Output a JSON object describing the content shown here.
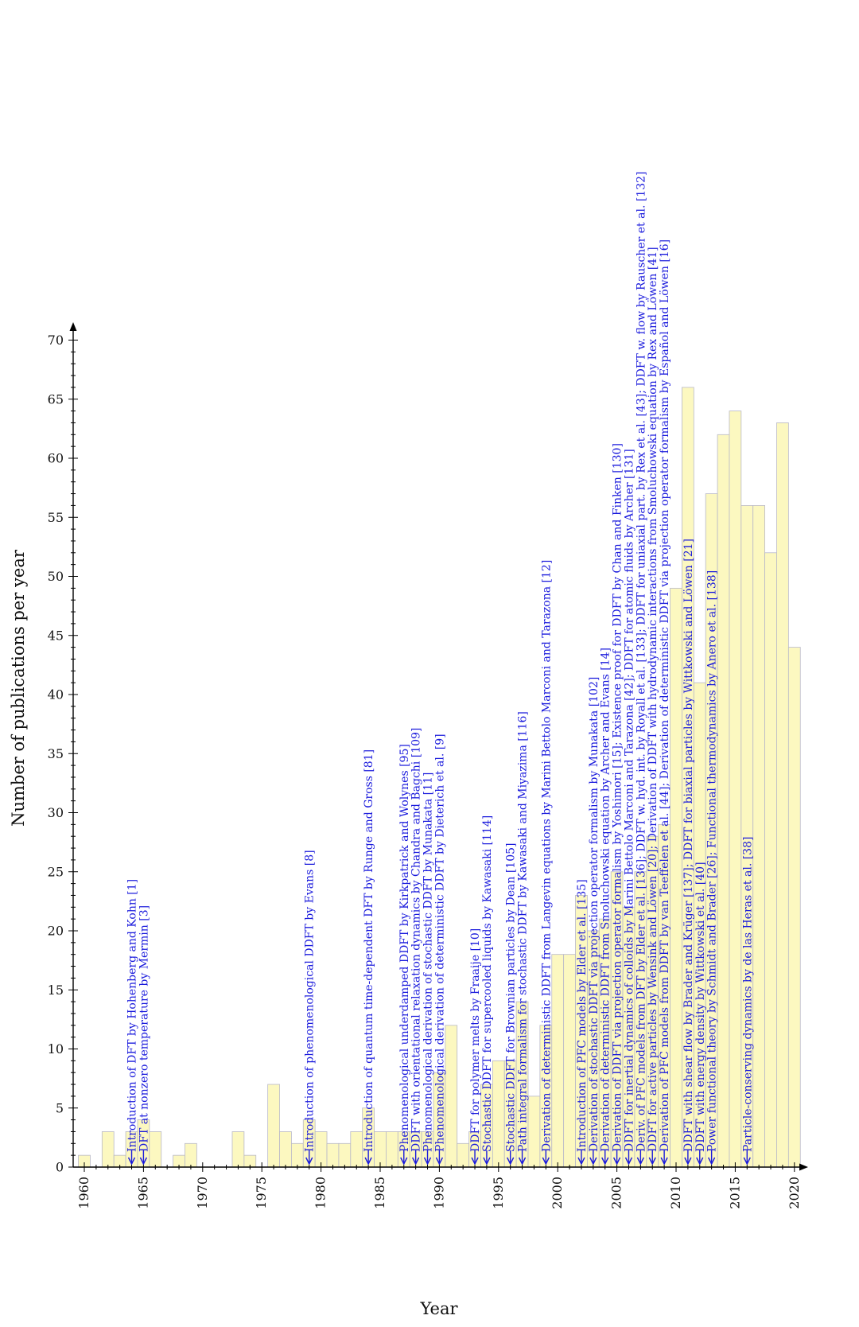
{
  "chart_data": {
    "type": "bar",
    "xlabel": "Year",
    "ylabel": "Number of publications per year",
    "xlim": [
      1959,
      2021
    ],
    "ylim": [
      0,
      70
    ],
    "x_ticks": [
      1960,
      1965,
      1970,
      1975,
      1980,
      1985,
      1990,
      1995,
      2000,
      2005,
      2010,
      2015,
      2020
    ],
    "y_ticks": [
      0,
      5,
      10,
      15,
      20,
      25,
      30,
      35,
      40,
      45,
      50,
      55,
      60,
      65,
      70
    ],
    "grid": false,
    "bar_color": "#fcf8c0",
    "bar_edge_color": "#b8b8c8",
    "annotation_color": "#1a1adc",
    "x": [
      1960,
      1961,
      1962,
      1963,
      1964,
      1965,
      1966,
      1967,
      1968,
      1969,
      1970,
      1971,
      1972,
      1973,
      1974,
      1975,
      1976,
      1977,
      1978,
      1979,
      1980,
      1981,
      1982,
      1983,
      1984,
      1985,
      1986,
      1987,
      1988,
      1989,
      1990,
      1991,
      1992,
      1993,
      1994,
      1995,
      1996,
      1997,
      1998,
      1999,
      2000,
      2001,
      2002,
      2003,
      2004,
      2005,
      2006,
      2007,
      2008,
      2009,
      2010,
      2011,
      2012,
      2013,
      2014,
      2015,
      2016,
      2017,
      2018,
      2019,
      2020
    ],
    "values": [
      1,
      0,
      3,
      1,
      3,
      4,
      3,
      0,
      1,
      2,
      0,
      0,
      0,
      3,
      1,
      0,
      7,
      3,
      2,
      4,
      3,
      2,
      2,
      3,
      5,
      3,
      3,
      3,
      3,
      3,
      8,
      12,
      2,
      3,
      7,
      9,
      9,
      14,
      6,
      12,
      18,
      18,
      23,
      20,
      21,
      25,
      22,
      25,
      28,
      29,
      49,
      66,
      41,
      57,
      62,
      64,
      56,
      56,
      52,
      63,
      44
    ],
    "annotations": [
      {
        "year": 1964,
        "text": "Introduction of DFT by Hohenberg and Kohn [1]"
      },
      {
        "year": 1965,
        "text": "DFT at nonzero temperature by Mermin [3]"
      },
      {
        "year": 1979,
        "text": "Introduction of phenomenological DDFT by Evans [8]"
      },
      {
        "year": 1984,
        "text": "Introduction of quantum time-dependent DFT by Runge and Gross [81]"
      },
      {
        "year": 1987,
        "text": "Phenomenological underdamped DDFT by Kirkpatrick and Wolynes [95]"
      },
      {
        "year": 1988,
        "text": "DDFT with orientational relaxation dynamics by Chandra and Bagchi [109]"
      },
      {
        "year": 1989,
        "text": "Phenomenological derivation of stochastic DDFT by Munakata [11]"
      },
      {
        "year": 1990,
        "text": "Phenomenological derivation of deterministic DDFT by Dieterich et al. [9]"
      },
      {
        "year": 1993,
        "text": "DDFT for polymer melts by Fraaije [10]"
      },
      {
        "year": 1994,
        "text": "Stochastic DDFT for supercooled liquids by Kawasaki [114]"
      },
      {
        "year": 1996,
        "text": "Stochastic DDFT for Brownian particles by Dean [105]"
      },
      {
        "year": 1997,
        "text": "Path integral formalism for stochastic DDFT by Kawasaki and Miyazima [116]"
      },
      {
        "year": 1999,
        "text": "Derivation of deterministic DDFT from Langevin equations by Marini Bettolo Marconi and Tarazona [12]"
      },
      {
        "year": 2002,
        "text": "Introduction of PFC models by Elder et al. [135]"
      },
      {
        "year": 2003,
        "text": "Derivation of stochastic DDFT via projection operator formalism by Munakata [102]"
      },
      {
        "year": 2004,
        "text": "Derivation of deterministic DDFT from Smoluchowski equation by Archer and Evans [14]"
      },
      {
        "year": 2005,
        "text": "Derivation of DDFT via projection operator formalism by Yoshimori [15]; Existence proof for DDFT by Chan and Finken [130]"
      },
      {
        "year": 2006,
        "text": "DDFT for inertial dynamics of colloids by Marini Bettolo Marconi and Tarazona [42]; DDFT for atomic fluids by Archer [131]"
      },
      {
        "year": 2007,
        "text": "Deriv. of PFC models from DFT by Elder et al. [136]; DDFT w. hyd. int. by Royall et al. [133]; DDFT for uniaxial part. by Rex et al. [43]; DDFT w. flow by Rauscher et al. [132]"
      },
      {
        "year": 2008,
        "text": "DDFT for active particles by Wensink and Löwen [20]; Derivation of DDFT with hydrodynamic interactions from Smoluchowski equation by Rex and Löwen [41]"
      },
      {
        "year": 2009,
        "text": "Derivation of PFC models from DDFT by van Teeffelen et al. [44]; Derivation of deterministic DDFT via projection operator formalism by Español and Löwen [16]"
      },
      {
        "year": 2011,
        "text": "DDFT with shear flow by Brader and Krüger [137]; DDFT for biaxial particles by Wittkowski and Löwen [21]"
      },
      {
        "year": 2012,
        "text": "DDFT with energy density by Wittkowski et al. [40]"
      },
      {
        "year": 2013,
        "text": "Power functional theory by Schmidt and Brader [26]; Functional thermodynamics by Anero et al. [138]"
      },
      {
        "year": 2016,
        "text": "Particle-conserving dynamics by de las Heras et al. [38]"
      }
    ]
  }
}
